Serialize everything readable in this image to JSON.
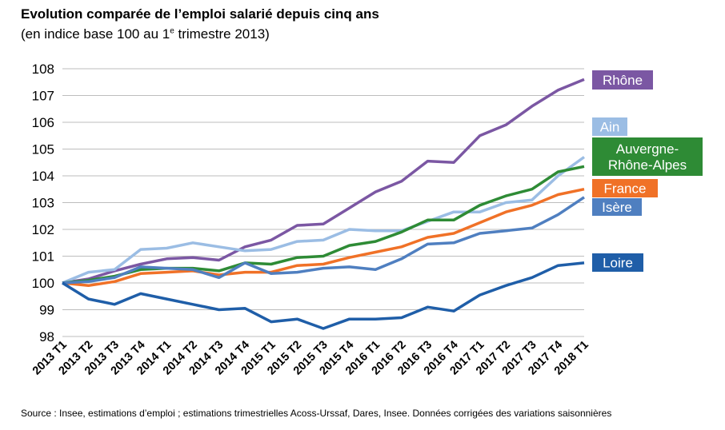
{
  "title": "Evolution comparée de l’emploi salarié depuis cinq ans",
  "subtitle": {
    "before": "(en indice base 100 au 1",
    "sup": "e",
    "after": " trimestre 2013)"
  },
  "source": "Source : Insee, estimations d’emploi ; estimations trimestrielles Acoss-Urssaf, Dares, Insee. Données corrigées des variations saisonnières",
  "chart_data": {
    "type": "line",
    "title": "Evolution comparée de l’emploi salarié depuis cinq ans",
    "subtitle": "(en indice base 100 au 1e trimestre 2013)",
    "xlabel": "",
    "ylabel": "",
    "ylim": [
      98,
      108
    ],
    "yticks": [
      "108",
      "107",
      "106",
      "105",
      "104",
      "103",
      "102",
      "101",
      "100",
      "99",
      "98"
    ],
    "grid": true,
    "legend": "direct labels at right end of lines",
    "categories": [
      "2013 T1",
      "2013 T2",
      "2013 T3",
      "2013 T4",
      "2014 T1",
      "2014 T2",
      "2014 T3",
      "2014 T4",
      "2015 T1",
      "2015 T2",
      "2015 T3",
      "2015 T4",
      "2016 T1",
      "2016 T2",
      "2016 T3",
      "2016 T4",
      "2017 T1",
      "2017 T2",
      "2017 T3",
      "2017 T4",
      "2018 T1"
    ],
    "series": [
      {
        "name": "Rhône",
        "color": "#7b57a3",
        "label_lines": [
          "Rhône"
        ],
        "values": [
          100.0,
          100.15,
          100.45,
          100.7,
          100.9,
          100.95,
          100.85,
          101.35,
          101.6,
          102.15,
          102.2,
          102.8,
          103.4,
          103.8,
          104.55,
          104.5,
          105.5,
          105.9,
          106.6,
          107.2,
          107.6
        ]
      },
      {
        "name": "Ain",
        "color": "#9bbde4",
        "label_lines": [
          "Ain"
        ],
        "values": [
          100.0,
          100.4,
          100.5,
          101.25,
          101.3,
          101.5,
          101.35,
          101.2,
          101.25,
          101.55,
          101.6,
          102.0,
          101.95,
          101.95,
          102.3,
          102.65,
          102.65,
          103.0,
          103.1,
          104.0,
          104.7
        ]
      },
      {
        "name": "Auvergne-Rhône-Alpes",
        "color": "#2e8b35",
        "label_lines": [
          "Auvergne-",
          "Rhône-Alpes"
        ],
        "values": [
          100.0,
          100.1,
          100.25,
          100.5,
          100.55,
          100.55,
          100.45,
          100.75,
          100.7,
          100.95,
          101.0,
          101.4,
          101.55,
          101.9,
          102.35,
          102.35,
          102.9,
          103.25,
          103.5,
          104.15,
          104.35
        ]
      },
      {
        "name": "France",
        "color": "#f07127",
        "label_lines": [
          "France"
        ],
        "values": [
          100.0,
          99.9,
          100.05,
          100.35,
          100.4,
          100.45,
          100.3,
          100.4,
          100.4,
          100.65,
          100.7,
          100.95,
          101.15,
          101.35,
          101.7,
          101.85,
          102.25,
          102.65,
          102.9,
          103.3,
          103.5
        ]
      },
      {
        "name": "Isère",
        "color": "#4f7fc0",
        "label_lines": [
          "Isère"
        ],
        "values": [
          100.0,
          100.05,
          100.2,
          100.6,
          100.55,
          100.5,
          100.2,
          100.75,
          100.35,
          100.4,
          100.55,
          100.6,
          100.5,
          100.9,
          101.45,
          101.5,
          101.85,
          101.95,
          102.05,
          102.55,
          103.2
        ]
      },
      {
        "name": "Loire",
        "color": "#1f5ea8",
        "label_lines": [
          "Loire"
        ],
        "values": [
          100.0,
          99.4,
          99.2,
          99.6,
          99.4,
          99.2,
          99.0,
          99.05,
          98.55,
          98.65,
          98.3,
          98.65,
          98.65,
          98.7,
          99.1,
          98.95,
          99.55,
          99.9,
          100.2,
          100.65,
          100.75
        ]
      }
    ]
  }
}
